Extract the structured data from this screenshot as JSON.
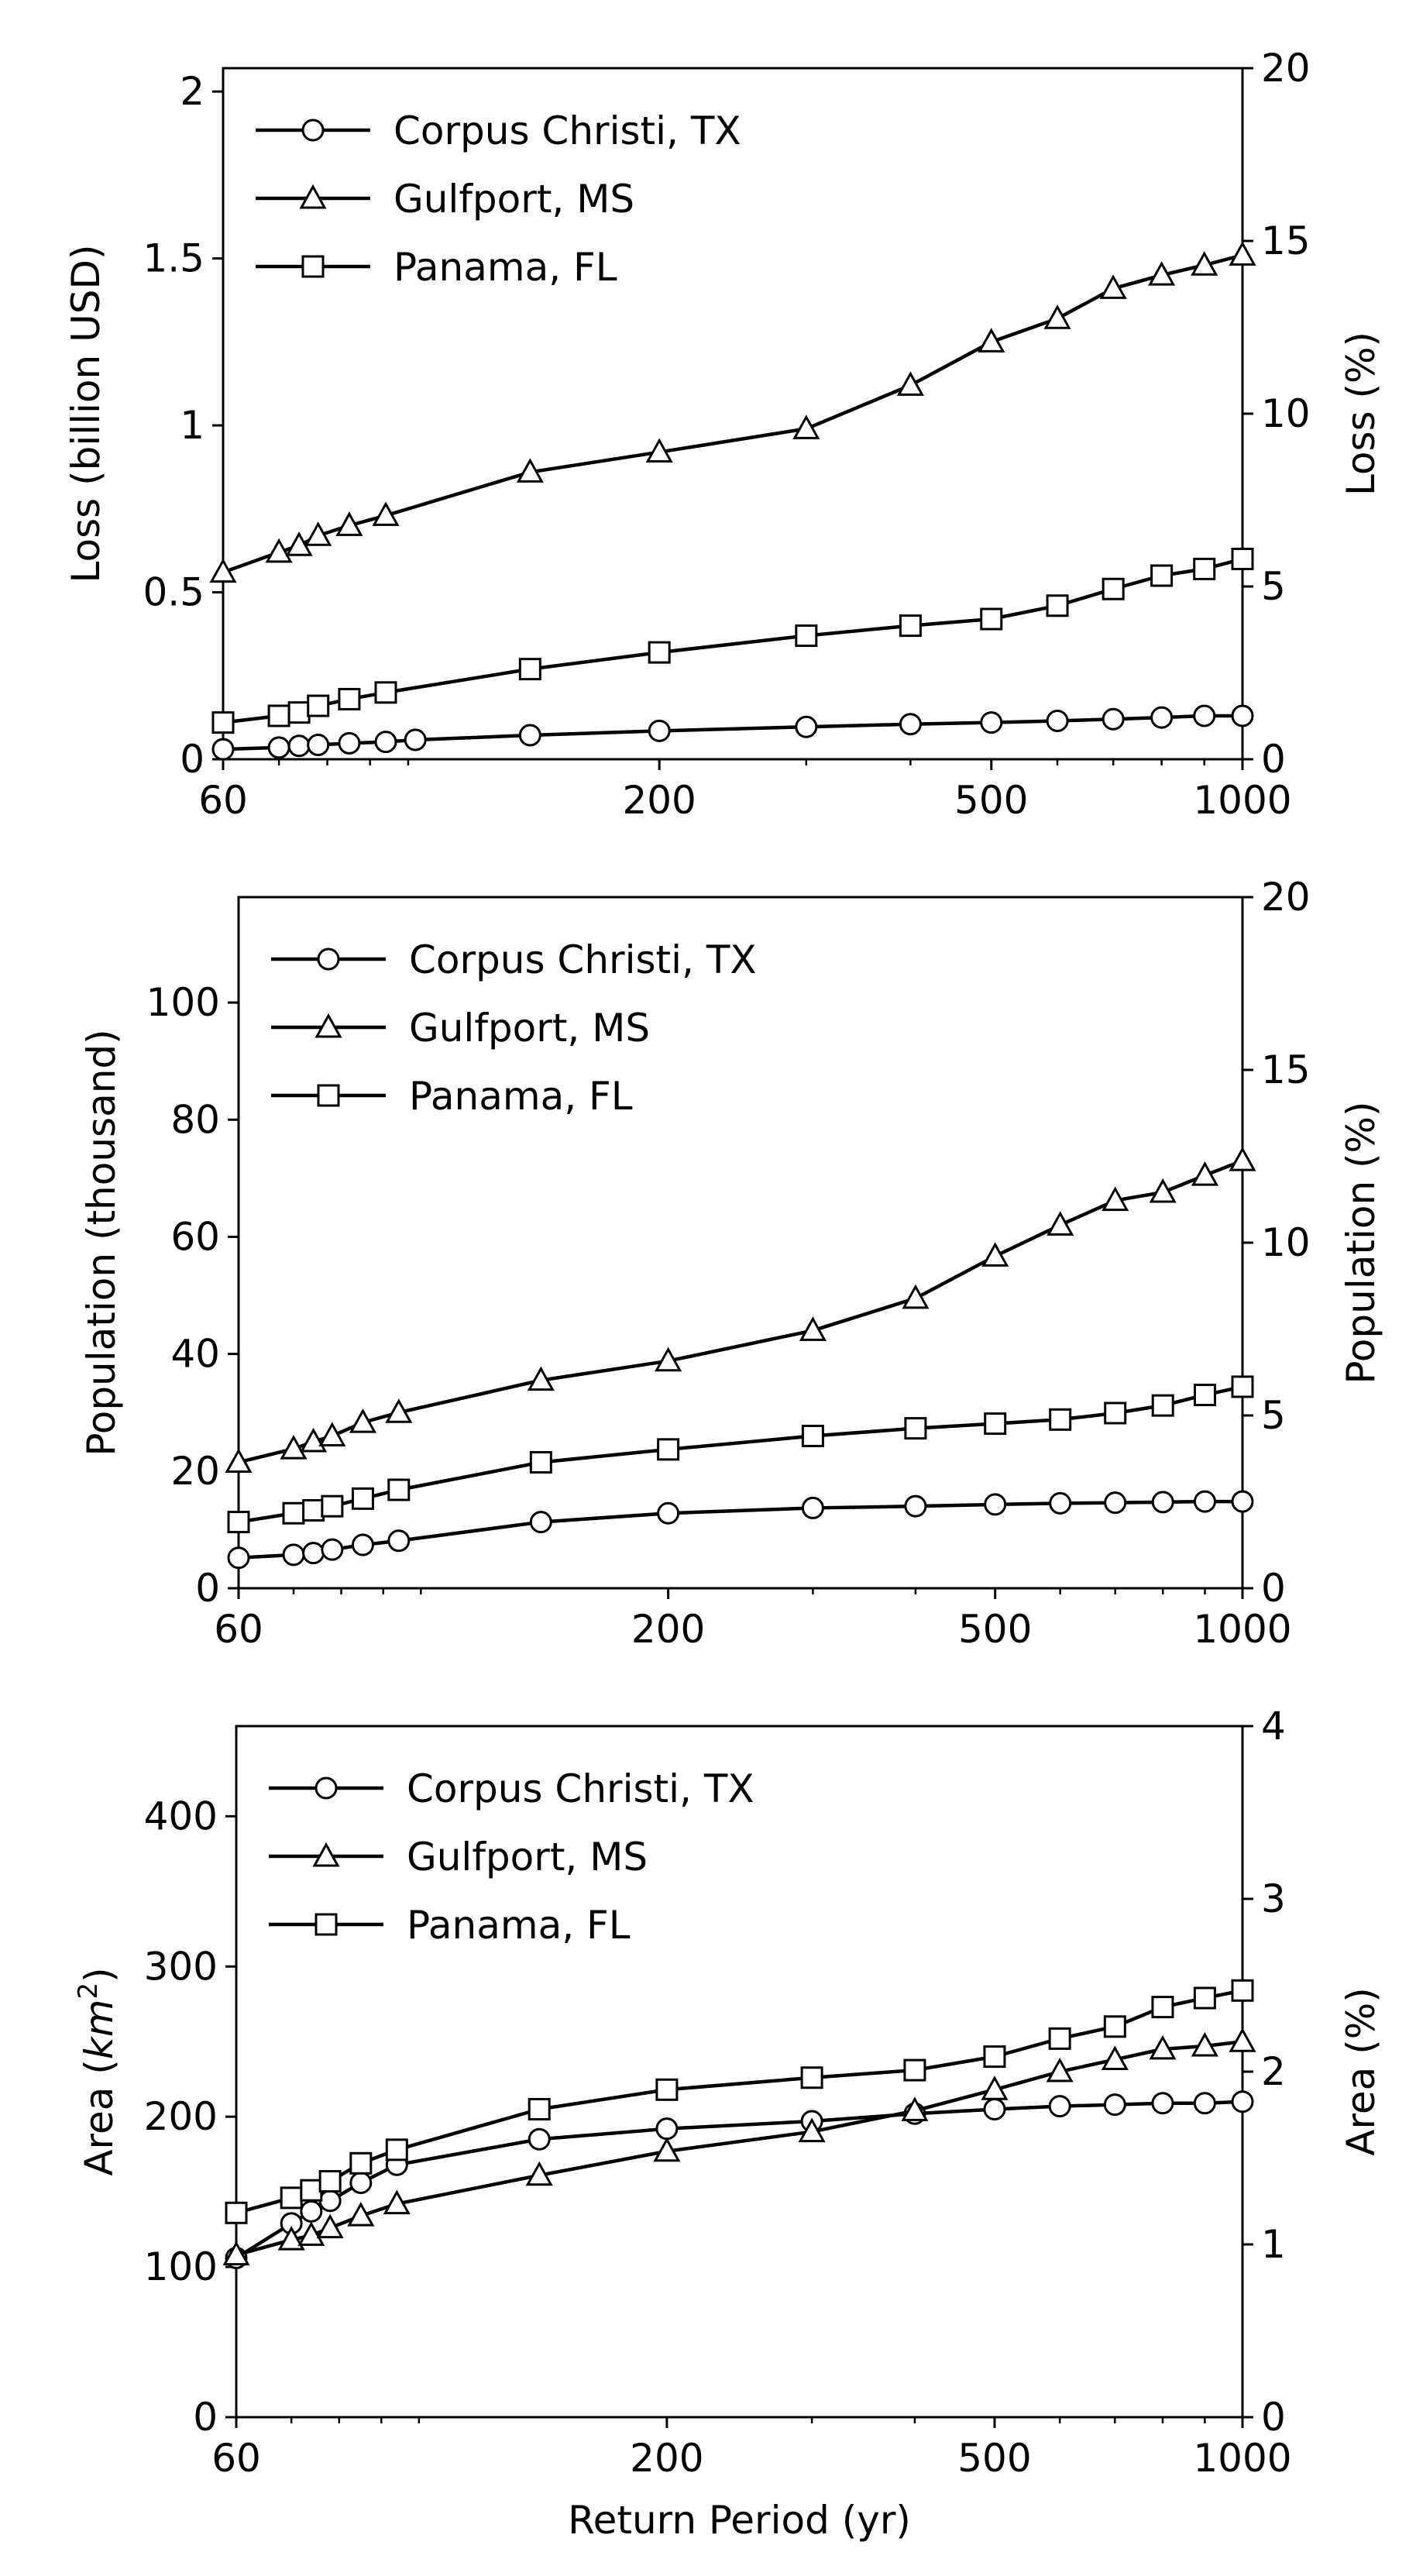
{
  "chart_data": [
    {
      "type": "line",
      "x_scale": "log",
      "xlim": [
        60,
        1000
      ],
      "x_ticks": [
        "60",
        "200",
        "500",
        "1000"
      ],
      "ylabel": "Loss (billion USD)",
      "ylim": [
        0,
        2.07
      ],
      "y_ticks": [
        "0",
        "0.5",
        "1",
        "1.5",
        "2"
      ],
      "y2label": "Loss (%)",
      "y2lim": [
        0,
        20
      ],
      "y2_ticks": [
        "0",
        "5",
        "10",
        "15",
        "20"
      ],
      "xlabel": "",
      "legend": "top-left",
      "grid": false,
      "series": [
        {
          "name": "Corpus Christi, TX",
          "marker": "circle",
          "x": [
            60,
            70,
            74,
            78,
            85,
            94,
            102,
            140,
            200,
            300,
            400,
            500,
            600,
            700,
            800,
            900,
            1000
          ],
          "y": [
            0.03,
            0.035,
            0.04,
            0.043,
            0.048,
            0.052,
            0.058,
            0.072,
            0.085,
            0.097,
            0.105,
            0.11,
            0.115,
            0.12,
            0.125,
            0.13,
            0.13
          ]
        },
        {
          "name": "Gulfport, MS",
          "marker": "triangle",
          "x": [
            60,
            70,
            74,
            78,
            85,
            94,
            140,
            200,
            300,
            400,
            500,
            600,
            700,
            800,
            900,
            1000
          ],
          "y": [
            0.56,
            0.62,
            0.64,
            0.67,
            0.7,
            0.73,
            0.86,
            0.92,
            0.99,
            1.12,
            1.25,
            1.32,
            1.41,
            1.45,
            1.48,
            1.51
          ]
        },
        {
          "name": "Panama, FL",
          "marker": "square",
          "x": [
            60,
            70,
            74,
            78,
            85,
            94,
            140,
            200,
            300,
            400,
            500,
            600,
            700,
            800,
            900,
            1000
          ],
          "y": [
            0.11,
            0.13,
            0.14,
            0.16,
            0.18,
            0.2,
            0.27,
            0.32,
            0.37,
            0.4,
            0.42,
            0.46,
            0.51,
            0.55,
            0.57,
            0.6
          ]
        }
      ]
    },
    {
      "type": "line",
      "x_scale": "log",
      "xlim": [
        60,
        1000
      ],
      "x_ticks": [
        "60",
        "200",
        "500",
        "1000"
      ],
      "ylabel": "Population (thousand)",
      "ylim": [
        0,
        118
      ],
      "y_ticks": [
        "0",
        "20",
        "40",
        "60",
        "80",
        "100"
      ],
      "y2label": "Population (%)",
      "y2lim": [
        0,
        20
      ],
      "y2_ticks": [
        "0",
        "5",
        "10",
        "15",
        "20"
      ],
      "xlabel": "",
      "legend": "top-left",
      "grid": false,
      "series": [
        {
          "name": "Corpus Christi, TX",
          "marker": "circle",
          "x": [
            60,
            70,
            74,
            78,
            85,
            94,
            140,
            200,
            300,
            400,
            500,
            600,
            700,
            800,
            900,
            1000
          ],
          "y": [
            5.2,
            5.7,
            6.0,
            6.6,
            7.4,
            8.1,
            11.3,
            12.8,
            13.7,
            14.0,
            14.3,
            14.5,
            14.6,
            14.7,
            14.8,
            14.8
          ]
        },
        {
          "name": "Gulfport, MS",
          "marker": "triangle",
          "x": [
            60,
            70,
            74,
            78,
            85,
            94,
            140,
            200,
            300,
            400,
            500,
            600,
            700,
            800,
            900,
            1000
          ],
          "y": [
            21.5,
            23.8,
            25.0,
            26.0,
            28.3,
            30.0,
            35.5,
            38.8,
            44.0,
            49.5,
            56.7,
            62.0,
            66.2,
            67.6,
            70.5,
            73.0
          ]
        },
        {
          "name": "Panama, FL",
          "marker": "square",
          "x": [
            60,
            70,
            74,
            78,
            85,
            94,
            140,
            200,
            300,
            400,
            500,
            600,
            700,
            800,
            900,
            1000
          ],
          "y": [
            11.3,
            12.8,
            13.3,
            14.0,
            15.3,
            16.8,
            21.5,
            23.7,
            26.0,
            27.3,
            28.1,
            28.8,
            29.9,
            31.2,
            33.0,
            34.4
          ]
        }
      ]
    },
    {
      "type": "line",
      "x_scale": "log",
      "xlim": [
        60,
        1000
      ],
      "x_ticks": [
        "60",
        "200",
        "500",
        "1000"
      ],
      "ylabel": "Area (km2)",
      "ylabel_parts": [
        "Area (",
        "km",
        "2",
        ")"
      ],
      "ylim": [
        0,
        460
      ],
      "y_ticks": [
        "0",
        "100",
        "200",
        "300",
        "400"
      ],
      "y2label": "Area (%)",
      "y2lim": [
        0,
        4
      ],
      "y2_ticks": [
        "0",
        "1",
        "2",
        "3",
        "4"
      ],
      "xlabel": "Return Period (yr)",
      "legend": "top-left",
      "grid": false,
      "series": [
        {
          "name": "Corpus Christi, TX",
          "marker": "circle",
          "x": [
            60,
            70,
            74,
            78,
            85,
            94,
            140,
            200,
            300,
            400,
            500,
            600,
            700,
            800,
            900,
            1000
          ],
          "y": [
            106,
            129,
            137,
            144,
            156,
            168,
            185,
            192,
            197,
            202,
            205,
            207,
            208,
            209,
            209,
            210
          ]
        },
        {
          "name": "Gulfport, MS",
          "marker": "triangle",
          "x": [
            60,
            70,
            74,
            78,
            85,
            94,
            140,
            200,
            300,
            400,
            500,
            600,
            700,
            800,
            900,
            1000
          ],
          "y": [
            108,
            118,
            121,
            126,
            134,
            142,
            161,
            177,
            190,
            204,
            218,
            230,
            238,
            245,
            247,
            250
          ]
        },
        {
          "name": "Panama, FL",
          "marker": "square",
          "x": [
            60,
            70,
            74,
            78,
            85,
            94,
            140,
            200,
            300,
            400,
            500,
            600,
            700,
            800,
            900,
            1000
          ],
          "y": [
            136,
            146,
            151,
            157,
            169,
            178,
            205,
            218,
            226,
            231,
            240,
            252,
            260,
            273,
            279,
            284
          ]
        }
      ]
    }
  ]
}
